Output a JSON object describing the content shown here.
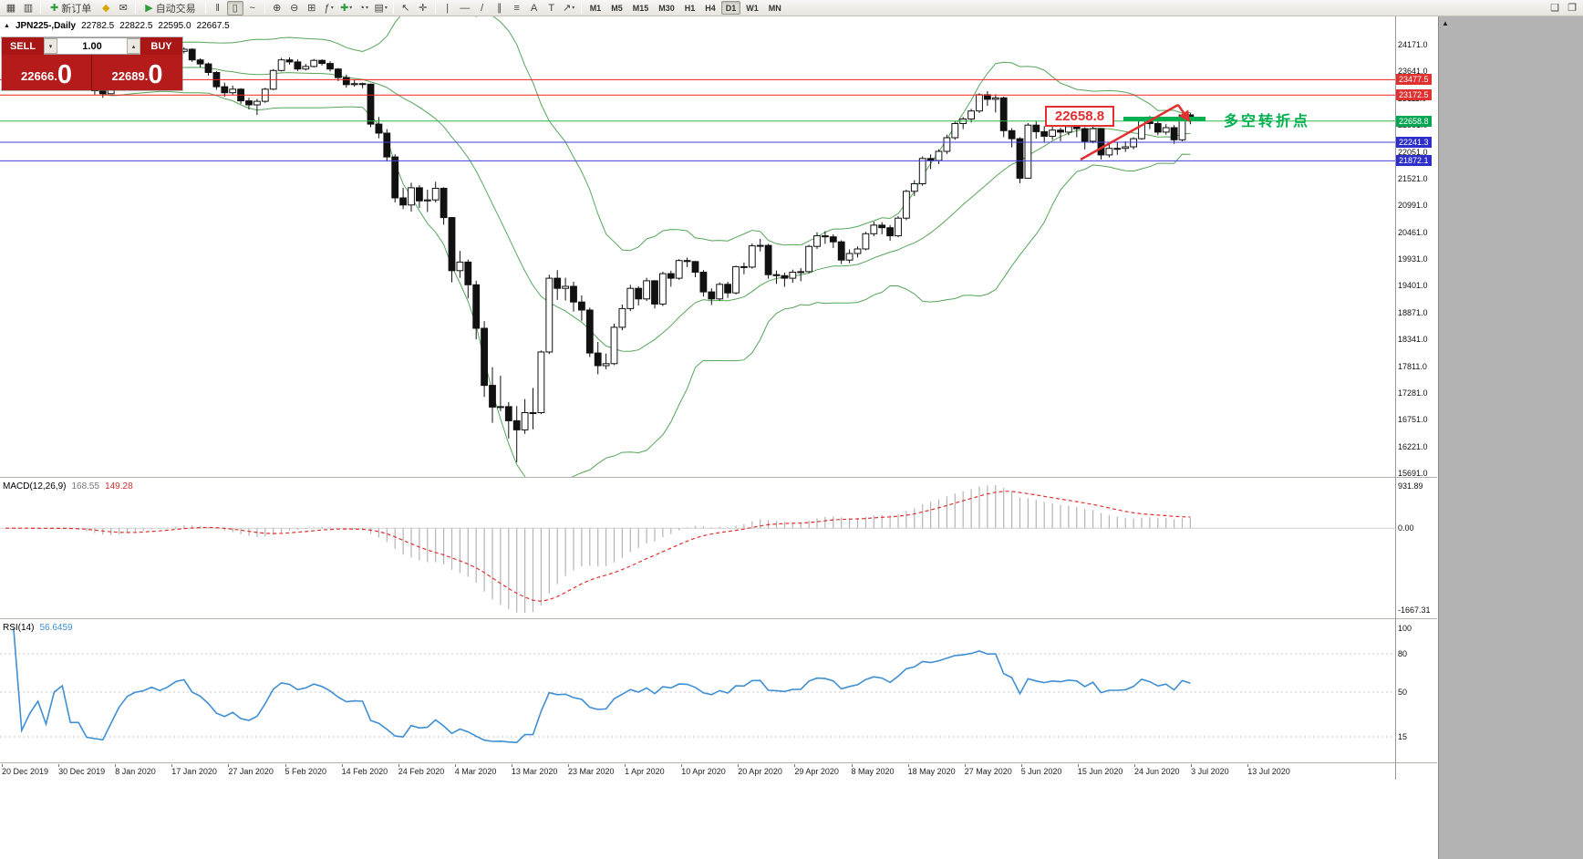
{
  "toolbar": {
    "items": [
      {
        "t": "icon",
        "name": "new-order-window-icon",
        "g": "▦"
      },
      {
        "t": "icon",
        "name": "profiles-icon",
        "g": "▥"
      },
      {
        "t": "sep"
      },
      {
        "t": "btn",
        "name": "new-order-button",
        "g": "✚",
        "gc": "#2e9e3e",
        "label": "新订单"
      },
      {
        "t": "icon",
        "name": "indicators-diamond-icon",
        "g": "◆",
        "gc": "#d8a800"
      },
      {
        "t": "icon",
        "name": "mail-icon",
        "g": "✉"
      },
      {
        "t": "sep"
      },
      {
        "t": "btn",
        "name": "auto-trading-button",
        "g": "▶",
        "gc": "#2e9e3e",
        "label": "自动交易"
      },
      {
        "t": "sep"
      },
      {
        "t": "icon",
        "name": "bar-chart-type-icon",
        "g": "‖"
      },
      {
        "t": "icon",
        "name": "candlestick-type-icon",
        "g": "▯",
        "active": true
      },
      {
        "t": "icon",
        "name": "line-chart-type-icon",
        "g": "~"
      },
      {
        "t": "sep"
      },
      {
        "t": "icon",
        "name": "zoom-in-icon",
        "g": "⊕"
      },
      {
        "t": "icon",
        "name": "zoom-out-icon",
        "g": "⊖"
      },
      {
        "t": "icon",
        "name": "tile-windows-icon",
        "g": "⊞"
      },
      {
        "t": "icon",
        "name": "indicator-list-icon",
        "g": "ƒ",
        "dd": true
      },
      {
        "t": "icon",
        "name": "add-indicator-icon",
        "g": "✚",
        "gc": "#2e9e3e",
        "dd": true
      },
      {
        "t": "icon",
        "name": "period-icon",
        "g": "◔",
        "dd": true
      },
      {
        "t": "icon",
        "name": "template-icon",
        "g": "▤",
        "dd": true
      },
      {
        "t": "sep"
      },
      {
        "t": "icon",
        "name": "cursor-icon",
        "g": "↖"
      },
      {
        "t": "icon",
        "name": "crosshair-icon",
        "g": "✛"
      },
      {
        "t": "sep"
      },
      {
        "t": "icon",
        "name": "vertical-line-icon",
        "g": "|"
      },
      {
        "t": "icon",
        "name": "horizontal-line-icon",
        "g": "—"
      },
      {
        "t": "icon",
        "name": "trendline-icon",
        "g": "/"
      },
      {
        "t": "icon",
        "name": "channel-icon",
        "g": "∥"
      },
      {
        "t": "icon",
        "name": "fibonacci-icon",
        "g": "≡"
      },
      {
        "t": "icon",
        "name": "text-icon",
        "g": "A"
      },
      {
        "t": "icon",
        "name": "text-label-icon",
        "g": "T"
      },
      {
        "t": "icon",
        "name": "arrows-icon",
        "g": "↗",
        "dd": true
      },
      {
        "t": "sep"
      }
    ],
    "timeframes": [
      "M1",
      "M5",
      "M15",
      "M30",
      "H1",
      "H4",
      "D1",
      "W1",
      "MN"
    ],
    "active_timeframe": "D1",
    "right_icons": [
      {
        "name": "print-icon",
        "g": "❏"
      },
      {
        "name": "print-preview-icon",
        "g": "❐"
      }
    ]
  },
  "chart_header": {
    "collapse_icon": "▲",
    "symbol": "JPN225-,Daily",
    "open": "22782.5",
    "high": "22822.5",
    "low": "22595.0",
    "close": "22667.5"
  },
  "trade_panel": {
    "sell_label": "SELL",
    "buy_label": "BUY",
    "volume": "1.00",
    "spin_down": "▾",
    "spin_up": "▴",
    "sell_price_small": "22666.",
    "sell_price_big": "0",
    "buy_price_small": "22689.",
    "buy_price_big": "0"
  },
  "levels": [
    {
      "label": "23477.5",
      "price": 23477.5,
      "line_color": "#f02020",
      "badge_color": "#e03030"
    },
    {
      "label": "23172.5",
      "price": 23172.5,
      "line_color": "#f02020",
      "badge_color": "#e03030"
    },
    {
      "label": "22658.8",
      "price": 22658.8,
      "line_color": "#2db84d",
      "badge_color": "#00a650"
    },
    {
      "label": "22241.3",
      "price": 22241.3,
      "line_color": "#4040dd",
      "badge_color": "#2e2ecc"
    },
    {
      "label": "21872.1",
      "price": 21872.1,
      "line_color": "#4040dd",
      "badge_color": "#2e2ecc"
    }
  ],
  "annotation": {
    "price_box_text": "22658.8",
    "box_color": "#e03030",
    "note_text": "多空转折点",
    "note_color": "#00b050",
    "trend_color": "#e03030",
    "level_bar_color": "#00b050"
  },
  "misc": {
    "scroll_up_glyph": "▲"
  },
  "colors": {
    "bull": "#ffffff",
    "bear": "#111111",
    "wick": "#111111",
    "bollinger": "#57a55a",
    "macd_hist": "#b4b4b4",
    "macd_signal": "#e03030",
    "macd_zero": "#d0d0d0",
    "rsi_line": "#3f8fd4",
    "rsi_level": "#c8c8c8"
  },
  "indicators": {
    "macd": {
      "label": "MACD(12,26,9)",
      "value": "168.55",
      "signal_value": "149.28",
      "scale": [
        "931.89",
        "0.00",
        "-1667.31"
      ]
    },
    "rsi": {
      "label": "RSI(14)",
      "value": "56.6459",
      "scale": [
        "100",
        "80",
        "50",
        "15"
      ],
      "scale_values": [
        100,
        80,
        50,
        15
      ],
      "levels": [
        80,
        50,
        15
      ]
    }
  },
  "price_scale": {
    "ticks": [
      "24171.0",
      "23641.0",
      "23111.0",
      "22581.0",
      "22051.0",
      "21521.0",
      "20991.0",
      "20461.0",
      "19931.0",
      "19401.0",
      "18871.0",
      "18341.0",
      "17811.0",
      "17281.0",
      "16751.0",
      "16221.0",
      "15691.0"
    ]
  },
  "chart_data": {
    "type": "candlestick",
    "symbol": "JPN225-",
    "timeframe": "Daily",
    "y_axis": {
      "top": 24171.0,
      "bottom": 15691.0
    },
    "x_axis_labels": [
      "20 Dec 2019",
      "30 Dec 2019",
      "8 Jan 2020",
      "17 Jan 2020",
      "27 Jan 2020",
      "5 Feb 2020",
      "14 Feb 2020",
      "24 Feb 2020",
      "4 Mar 2020",
      "13 Mar 2020",
      "23 Mar 2020",
      "1 Apr 2020",
      "10 Apr 2020",
      "20 Apr 2020",
      "29 Apr 2020",
      "8 May 2020",
      "18 May 2020",
      "27 May 2020",
      "5 Jun 2020",
      "15 Jun 2020",
      "24 Jun 2020",
      "3 Jul 2020",
      "13 Jul 2020"
    ],
    "indicators": {
      "bollinger_period": 20,
      "bollinger_deviation": 2,
      "macd": [
        12,
        26,
        9
      ],
      "rsi_period": 14
    },
    "ohlc": [
      [
        23800,
        23900,
        23760,
        23850
      ],
      [
        23850,
        23910,
        23800,
        23860
      ],
      [
        23860,
        23900,
        23780,
        23820
      ],
      [
        23820,
        23880,
        23790,
        23830
      ],
      [
        23830,
        23890,
        23800,
        23840
      ],
      [
        23840,
        23870,
        23760,
        23790
      ],
      [
        23790,
        23880,
        23770,
        23850
      ],
      [
        23850,
        23920,
        23820,
        23870
      ],
      [
        23870,
        23890,
        23620,
        23650
      ],
      [
        23650,
        23740,
        23580,
        23650
      ],
      [
        23650,
        23680,
        23280,
        23320
      ],
      [
        23320,
        23380,
        23180,
        23260
      ],
      [
        23260,
        23300,
        23120,
        23200
      ],
      [
        23200,
        23390,
        23190,
        23350
      ],
      [
        23350,
        23590,
        23330,
        23560
      ],
      [
        23560,
        23770,
        23540,
        23740
      ],
      [
        23740,
        23850,
        23700,
        23820
      ],
      [
        23820,
        23880,
        23760,
        23850
      ],
      [
        23850,
        23950,
        23810,
        23920
      ],
      [
        23920,
        23950,
        23820,
        23860
      ],
      [
        23860,
        23960,
        23830,
        23930
      ],
      [
        23930,
        24060,
        23900,
        24040
      ],
      [
        24040,
        24120,
        24000,
        24080
      ],
      [
        24080,
        24100,
        23830,
        23870
      ],
      [
        23870,
        23900,
        23720,
        23790
      ],
      [
        23790,
        23820,
        23560,
        23620
      ],
      [
        23620,
        23650,
        23280,
        23340
      ],
      [
        23340,
        23420,
        23140,
        23220
      ],
      [
        23220,
        23360,
        23180,
        23290
      ],
      [
        23290,
        23310,
        23000,
        23060
      ],
      [
        23060,
        23120,
        22890,
        22980
      ],
      [
        22980,
        23100,
        22780,
        23050
      ],
      [
        23050,
        23320,
        23020,
        23290
      ],
      [
        23290,
        23690,
        23270,
        23660
      ],
      [
        23660,
        23910,
        23640,
        23870
      ],
      [
        23870,
        23920,
        23780,
        23830
      ],
      [
        23830,
        23880,
        23650,
        23690
      ],
      [
        23690,
        23790,
        23660,
        23740
      ],
      [
        23740,
        23890,
        23720,
        23860
      ],
      [
        23860,
        23880,
        23760,
        23800
      ],
      [
        23800,
        23840,
        23640,
        23690
      ],
      [
        23690,
        23710,
        23450,
        23520
      ],
      [
        23520,
        23580,
        23320,
        23380
      ],
      [
        23380,
        23470,
        23340,
        23400
      ],
      [
        23400,
        23420,
        23310,
        23390
      ],
      [
        23390,
        23400,
        22540,
        22600
      ],
      [
        22600,
        22740,
        22320,
        22420
      ],
      [
        22420,
        22500,
        21860,
        21950
      ],
      [
        21950,
        22000,
        21050,
        21140
      ],
      [
        21140,
        21340,
        20920,
        21000
      ],
      [
        21000,
        21440,
        20870,
        21340
      ],
      [
        21340,
        21390,
        20940,
        21080
      ],
      [
        21080,
        21300,
        20860,
        21100
      ],
      [
        21100,
        21460,
        21050,
        21330
      ],
      [
        21330,
        21350,
        20610,
        20750
      ],
      [
        20750,
        20760,
        19470,
        19700
      ],
      [
        19700,
        20090,
        19560,
        19870
      ],
      [
        19870,
        19920,
        19150,
        19420
      ],
      [
        19420,
        19500,
        18340,
        18560
      ],
      [
        18560,
        18700,
        17200,
        17430
      ],
      [
        17430,
        17790,
        16690,
        17000
      ],
      [
        17000,
        17620,
        16920,
        17010
      ],
      [
        17010,
        17100,
        16380,
        16730
      ],
      [
        16730,
        17020,
        15910,
        16550
      ],
      [
        16550,
        17160,
        16470,
        16890
      ],
      [
        16890,
        17380,
        16560,
        16890
      ],
      [
        16890,
        18120,
        16860,
        18090
      ],
      [
        18090,
        19620,
        18050,
        19550
      ],
      [
        19550,
        19710,
        19120,
        19350
      ],
      [
        19350,
        19560,
        19110,
        19390
      ],
      [
        19390,
        19480,
        18890,
        19080
      ],
      [
        19080,
        19210,
        18710,
        18920
      ],
      [
        18920,
        18970,
        17990,
        18070
      ],
      [
        18070,
        18290,
        17650,
        17820
      ],
      [
        17820,
        18060,
        17750,
        17860
      ],
      [
        17860,
        18650,
        17830,
        18580
      ],
      [
        18580,
        19030,
        18520,
        18950
      ],
      [
        18950,
        19420,
        18900,
        19350
      ],
      [
        19350,
        19390,
        19010,
        19140
      ],
      [
        19140,
        19560,
        19100,
        19500
      ],
      [
        19500,
        19510,
        18950,
        19040
      ],
      [
        19040,
        19680,
        19000,
        19640
      ],
      [
        19640,
        19700,
        19380,
        19550
      ],
      [
        19550,
        19930,
        19520,
        19900
      ],
      [
        19900,
        19960,
        19770,
        19880
      ],
      [
        19880,
        19890,
        19570,
        19670
      ],
      [
        19670,
        19710,
        19190,
        19280
      ],
      [
        19280,
        19350,
        19020,
        19140
      ],
      [
        19140,
        19470,
        19110,
        19430
      ],
      [
        19430,
        19480,
        19160,
        19260
      ],
      [
        19260,
        19800,
        19230,
        19780
      ],
      [
        19780,
        19860,
        19630,
        19770
      ],
      [
        19770,
        20240,
        19740,
        20190
      ],
      [
        20190,
        20330,
        20080,
        20200
      ],
      [
        20200,
        20230,
        19540,
        19620
      ],
      [
        19620,
        19700,
        19440,
        19600
      ],
      [
        19600,
        19660,
        19380,
        19550
      ],
      [
        19550,
        19720,
        19460,
        19670
      ],
      [
        19670,
        19750,
        19490,
        19680
      ],
      [
        19680,
        20210,
        19650,
        20180
      ],
      [
        20180,
        20460,
        20130,
        20390
      ],
      [
        20390,
        20480,
        20230,
        20370
      ],
      [
        20370,
        20420,
        20150,
        20270
      ],
      [
        20270,
        20300,
        19830,
        19910
      ],
      [
        19910,
        20120,
        19850,
        20040
      ],
      [
        20040,
        20180,
        19960,
        20130
      ],
      [
        20130,
        20470,
        20100,
        20430
      ],
      [
        20430,
        20670,
        20380,
        20600
      ],
      [
        20600,
        20660,
        20420,
        20550
      ],
      [
        20550,
        20600,
        20290,
        20390
      ],
      [
        20390,
        20780,
        20360,
        20740
      ],
      [
        20740,
        21300,
        20700,
        21270
      ],
      [
        21270,
        21490,
        21180,
        21420
      ],
      [
        21420,
        21960,
        21380,
        21920
      ],
      [
        21920,
        22000,
        21710,
        21880
      ],
      [
        21880,
        22100,
        21810,
        22060
      ],
      [
        22060,
        22390,
        22010,
        22330
      ],
      [
        22330,
        22660,
        22290,
        22610
      ],
      [
        22610,
        22740,
        22500,
        22700
      ],
      [
        22700,
        22900,
        22630,
        22860
      ],
      [
        22860,
        23210,
        22820,
        23180
      ],
      [
        23180,
        23250,
        22960,
        23090
      ],
      [
        23090,
        23190,
        22830,
        23120
      ],
      [
        23120,
        23140,
        22340,
        22470
      ],
      [
        22470,
        22520,
        22140,
        22310
      ],
      [
        22310,
        22340,
        21430,
        21530
      ],
      [
        21530,
        22620,
        21520,
        22580
      ],
      [
        22580,
        22660,
        22310,
        22450
      ],
      [
        22450,
        22560,
        22230,
        22360
      ],
      [
        22360,
        22550,
        22290,
        22480
      ],
      [
        22480,
        22530,
        22260,
        22440
      ],
      [
        22440,
        22620,
        22380,
        22550
      ],
      [
        22550,
        22600,
        22340,
        22510
      ],
      [
        22510,
        22540,
        22100,
        22260
      ],
      [
        22260,
        22580,
        22220,
        22510
      ],
      [
        22510,
        22520,
        21900,
        21990
      ],
      [
        21990,
        22220,
        21940,
        22120
      ],
      [
        22120,
        22240,
        21990,
        22120
      ],
      [
        22120,
        22260,
        22050,
        22150
      ],
      [
        22150,
        22340,
        22100,
        22310
      ],
      [
        22310,
        22740,
        22290,
        22710
      ],
      [
        22710,
        22760,
        22500,
        22610
      ],
      [
        22610,
        22680,
        22380,
        22440
      ],
      [
        22440,
        22600,
        22390,
        22530
      ],
      [
        22530,
        22580,
        22210,
        22290
      ],
      [
        22290,
        22800,
        22260,
        22780
      ],
      [
        22782.5,
        22822.5,
        22595.0,
        22667.5
      ]
    ]
  }
}
